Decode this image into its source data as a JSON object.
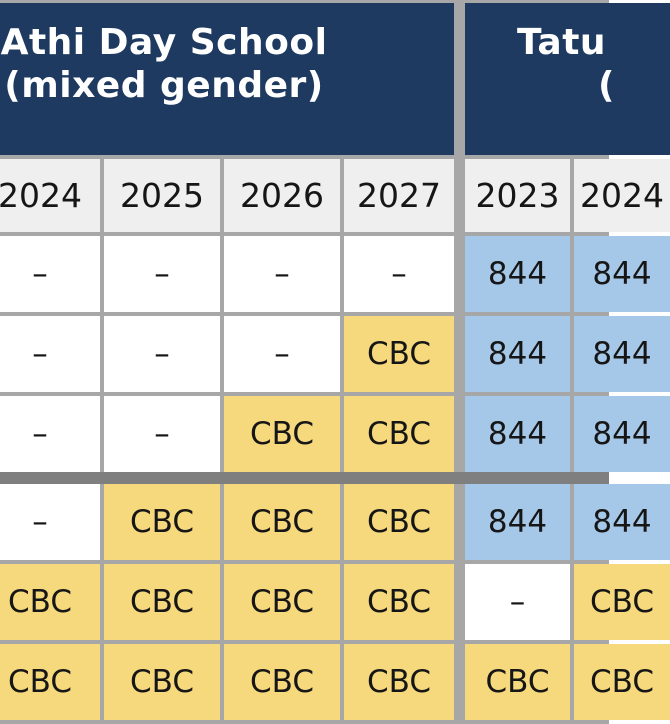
{
  "colors": {
    "navy": "#1e3a61",
    "cell_border_gray": "#a7a7a7",
    "divider_dark_gray": "#7f7f7f",
    "year_header_bg": "#efefef",
    "cbc_yellow": "#f6d97d",
    "e844_blue": "#a6c8e8",
    "empty_white": "#ffffff",
    "title_text": "#ffffff",
    "cell_text": "#161616"
  },
  "cell_styles": {
    "CBC": "#f6d97d",
    "844": "#a6c8e8",
    "–": "#ffffff"
  },
  "chart_data": [
    {
      "type": "table",
      "title_line1": "Athi Day School",
      "title_line2": "(mixed gender)",
      "columns": [
        "2024",
        "2025",
        "2026",
        "2027"
      ],
      "rows": [
        [
          "–",
          "–",
          "–",
          "–"
        ],
        [
          "–",
          "–",
          "–",
          "CBC"
        ],
        [
          "–",
          "–",
          "CBC",
          "CBC"
        ],
        [
          "–",
          "CBC",
          "CBC",
          "CBC"
        ],
        [
          "CBC",
          "CBC",
          "CBC",
          "CBC"
        ],
        [
          "CBC",
          "CBC",
          "CBC",
          "CBC"
        ]
      ]
    },
    {
      "type": "table",
      "title_line1": "Tatu",
      "title_line2": "(",
      "columns": [
        "2023",
        "2024"
      ],
      "rows": [
        [
          "844",
          "844"
        ],
        [
          "844",
          "844"
        ],
        [
          "844",
          "844"
        ],
        [
          "844",
          "844"
        ],
        [
          "–",
          "CBC"
        ],
        [
          "CBC",
          "CBC"
        ]
      ]
    }
  ]
}
